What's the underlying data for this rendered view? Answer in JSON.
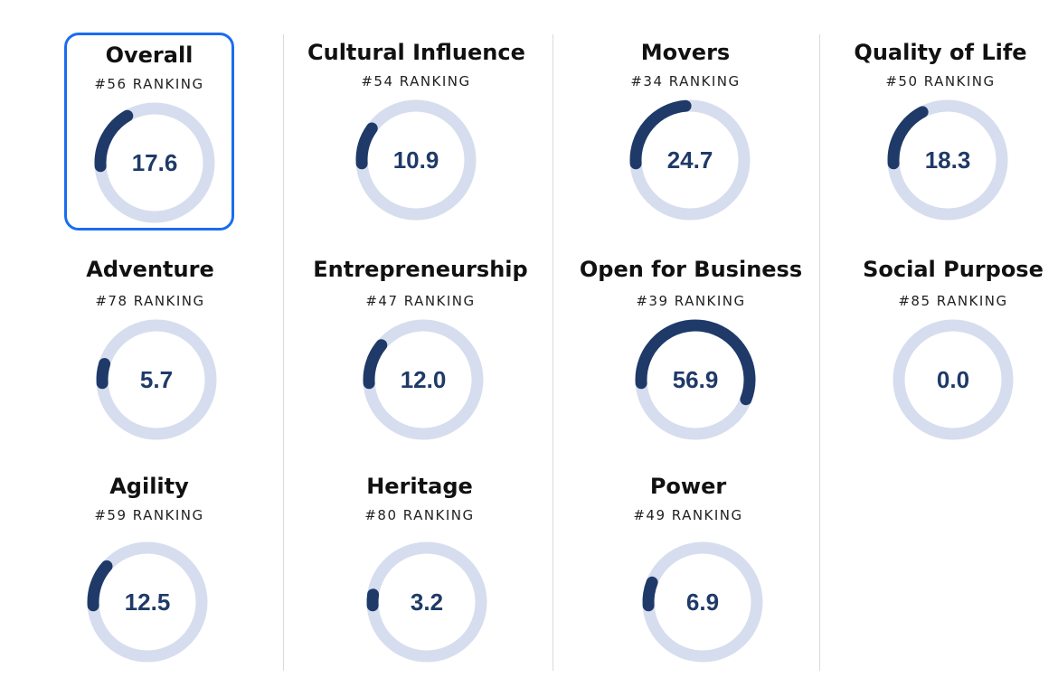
{
  "colors": {
    "arc": "#1f3a68",
    "track": "#d6ddee",
    "selected_border": "#1a6df0",
    "value": "#1f3a68"
  },
  "cards": [
    {
      "title": "Overall",
      "rank": "#56 RANKING",
      "value": "17.6",
      "score": 17.6,
      "selected": true
    },
    {
      "title": "Cultural Influence",
      "rank": "#54 RANKING",
      "value": "10.9",
      "score": 10.9
    },
    {
      "title": "Movers",
      "rank": "#34 RANKING",
      "value": "24.7",
      "score": 24.7
    },
    {
      "title": "Quality of Life",
      "rank": "#50 RANKING",
      "value": "18.3",
      "score": 18.3
    },
    {
      "title": "Adventure",
      "rank": "#78 RANKING",
      "value": "5.7",
      "score": 5.7
    },
    {
      "title": "Entrepreneurship",
      "rank": "#47 RANKING",
      "value": "12.0",
      "score": 12.0
    },
    {
      "title": "Open for Business",
      "rank": "#39 RANKING",
      "value": "56.9",
      "score": 56.9
    },
    {
      "title": "Social Purpose",
      "rank": "#85 RANKING",
      "value": "0.0",
      "score": 0.0
    },
    {
      "title": "Agility",
      "rank": "#59 RANKING",
      "value": "12.5",
      "score": 12.5
    },
    {
      "title": "Heritage",
      "rank": "#80 RANKING",
      "value": "3.2",
      "score": 3.2
    },
    {
      "title": "Power",
      "rank": "#49 RANKING",
      "value": "6.9",
      "score": 6.9
    }
  ]
}
